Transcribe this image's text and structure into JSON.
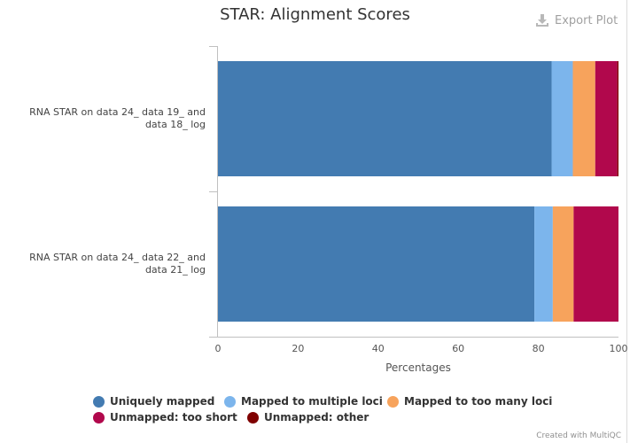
{
  "chart_data": {
    "type": "bar",
    "orientation": "horizontal",
    "stacked": true,
    "title": "STAR: Alignment Scores",
    "xlabel": "Percentages",
    "xlim": [
      0,
      100
    ],
    "xticks": [
      "0",
      "20",
      "40",
      "60",
      "80",
      "100"
    ],
    "categories": [
      "RNA STAR on data 24_ data 19_ and data 18_ log",
      "RNA STAR on data 24_ data 22_ and data 21_ log"
    ],
    "series": [
      {
        "name": "Uniquely mapped",
        "color": "#437bb1",
        "values": [
          83.3,
          79.0
        ]
      },
      {
        "name": "Mapped to multiple loci",
        "color": "#7cb5ec",
        "values": [
          5.3,
          4.6
        ]
      },
      {
        "name": "Mapped to too many loci",
        "color": "#f7a35c",
        "values": [
          5.6,
          5.2
        ]
      },
      {
        "name": "Unmapped: too short",
        "color": "#b1084c",
        "values": [
          5.5,
          11.2
        ]
      },
      {
        "name": "Unmapped: other",
        "color": "#7f0000",
        "values": [
          0.3,
          0.0
        ]
      }
    ],
    "legend_position": "bottom"
  },
  "toolbar": {
    "export_label": "Export Plot",
    "export_icon": "download-icon"
  },
  "footer": {
    "credit": "Created with MultiQC"
  }
}
